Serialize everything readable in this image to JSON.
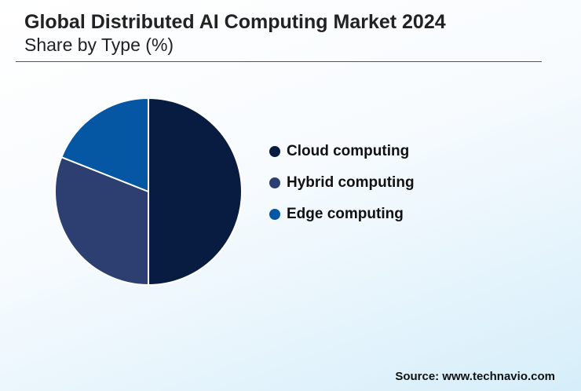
{
  "header": {
    "title": "Global Distributed AI Computing Market 2024",
    "subtitle": "Share by Type (%)"
  },
  "source": "Source: www.technavio.com",
  "chart_data": {
    "type": "pie",
    "title": "Global Distributed AI Computing Market 2024",
    "subtitle": "Share by Type (%)",
    "categories": [
      "Cloud computing",
      "Hybrid computing",
      "Edge computing"
    ],
    "values": [
      50,
      31,
      19
    ],
    "colors": [
      "#081c42",
      "#2d3f70",
      "#0556a3"
    ],
    "start_angle": "12 o'clock, clockwise",
    "legend_position": "right"
  }
}
